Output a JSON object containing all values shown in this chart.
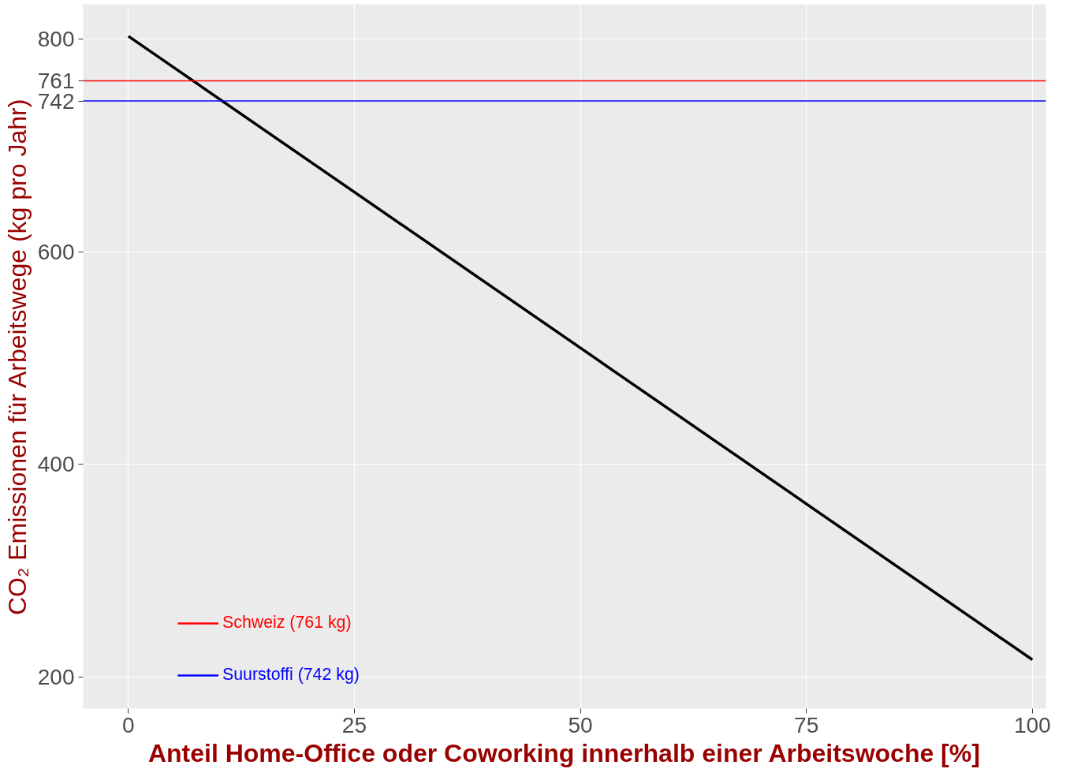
{
  "chart_data": {
    "type": "line",
    "xlabel": "Anteil Home-Office oder Coworking innerhalb einer Arbeitswoche [%]",
    "ylabel": "CO₂ Emissionen für Arbeitswege (kg pro Jahr)",
    "x": [
      0,
      100
    ],
    "series": [
      {
        "color": "#000000",
        "values": [
          803,
          216
        ]
      }
    ],
    "xlim": [
      -5,
      101.5
    ],
    "xticks": [
      0,
      25,
      50,
      75,
      100
    ],
    "ylim": [
      170,
      833
    ],
    "yticks": [
      200,
      400,
      600,
      742,
      761,
      800
    ],
    "ref_lines": [
      {
        "axis": "y",
        "value": 761,
        "label": "Schweiz (761 kg)",
        "color": "#ff0000"
      },
      {
        "axis": "y",
        "value": 742,
        "label": "Suurstoffi (742 kg)",
        "color": "#0000ff"
      }
    ],
    "grid": true,
    "legend": "bottom left",
    "line_style": "solid",
    "marker": "none"
  }
}
